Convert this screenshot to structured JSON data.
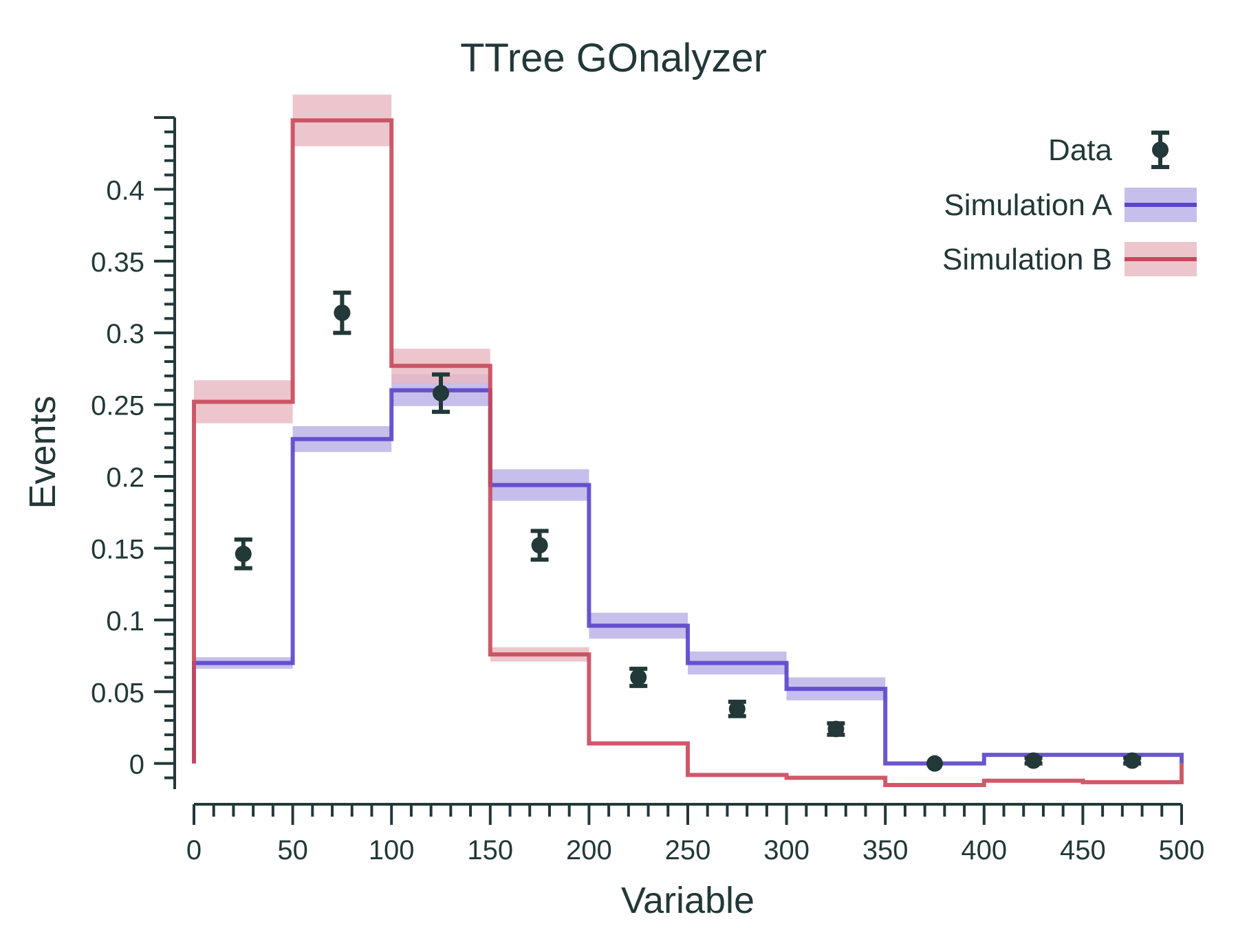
{
  "chart_data": {
    "type": "histogram",
    "title": "TTree GOnalyzer",
    "xlabel": "Variable",
    "ylabel": "Events",
    "xlim": [
      0,
      500
    ],
    "ylim": [
      -0.015,
      0.45
    ],
    "x_ticks": [
      0,
      50,
      100,
      150,
      200,
      250,
      300,
      350,
      400,
      450,
      500
    ],
    "x_tick_labels": [
      "0",
      "50",
      "100",
      "150",
      "200",
      "250",
      "300",
      "350",
      "400",
      "450",
      "500"
    ],
    "y_ticks": [
      0,
      0.05,
      0.1,
      0.15,
      0.2,
      0.25,
      0.3,
      0.35,
      0.4
    ],
    "y_tick_labels": [
      "0",
      "0.05",
      "0.1",
      "0.15",
      "0.2",
      "0.25",
      "0.3",
      "0.35",
      "0.4"
    ],
    "grid": false,
    "legend_position": "top-right",
    "bin_edges": [
      0,
      50,
      100,
      150,
      200,
      250,
      300,
      350,
      400,
      450,
      500
    ],
    "series": [
      {
        "name": "Data",
        "kind": "points-with-errors",
        "color": "#233838",
        "x": [
          25,
          75,
          125,
          175,
          225,
          275,
          325,
          375,
          425,
          475
        ],
        "values": [
          0.146,
          0.314,
          0.258,
          0.152,
          0.06,
          0.038,
          0.024,
          0.0,
          0.002,
          0.002
        ],
        "errors": [
          0.01,
          0.014,
          0.013,
          0.01,
          0.006,
          0.005,
          0.004,
          0.0,
          0.002,
          0.002
        ]
      },
      {
        "name": "Simulation A",
        "kind": "step",
        "color": "#5a44c8",
        "band_color": "#b8aee6",
        "values": [
          0.07,
          0.226,
          0.26,
          0.194,
          0.096,
          0.07,
          0.052,
          0.0,
          0.006,
          0.006
        ],
        "band": [
          0.004,
          0.009,
          0.011,
          0.011,
          0.009,
          0.008,
          0.008,
          0.0,
          0.0,
          0.0
        ]
      },
      {
        "name": "Simulation B",
        "kind": "step",
        "color": "#c8485a",
        "band_color": "#e8b8c0",
        "values": [
          0.252,
          0.448,
          0.277,
          0.076,
          0.014,
          -0.008,
          -0.01,
          -0.015,
          -0.012,
          -0.013
        ],
        "band": [
          0.015,
          0.018,
          0.012,
          0.005,
          0.0,
          0.0,
          0.0,
          0.0,
          0.0,
          0.0
        ]
      }
    ]
  }
}
